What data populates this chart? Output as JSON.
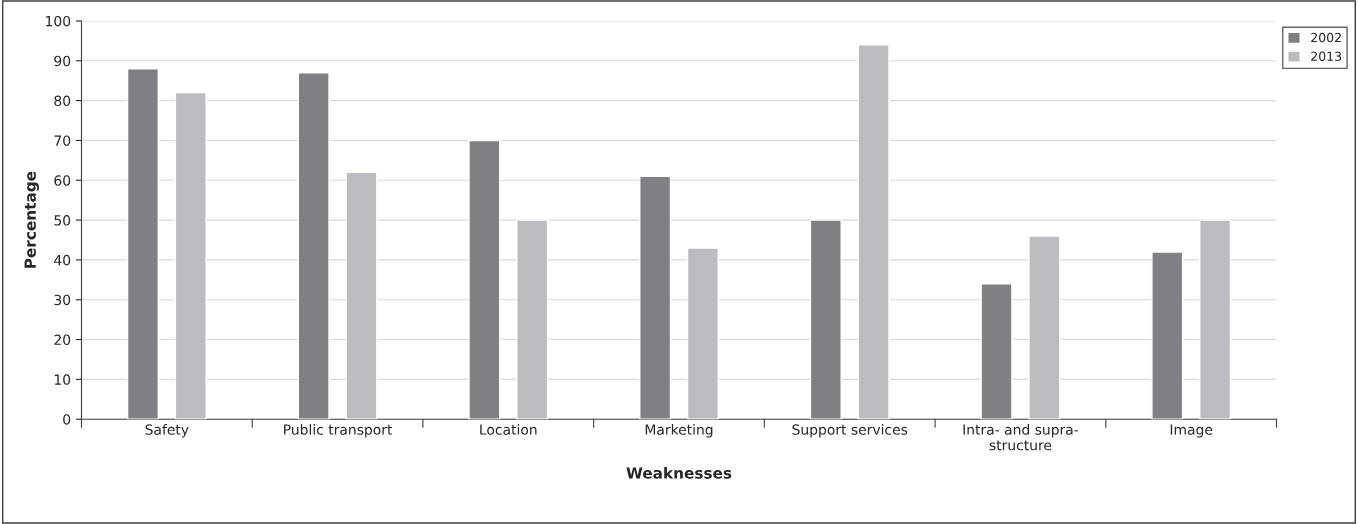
{
  "chart_data": {
    "type": "bar",
    "xlabel": "Weaknesses",
    "ylabel": "Percentage",
    "categories": [
      "Safety",
      "Public transport",
      "Location",
      "Marketing",
      "Support services",
      "Intra- and supra-\nstructure",
      "Image"
    ],
    "series": [
      {
        "name": "2002",
        "color": "#808083",
        "values": [
          88,
          87,
          70,
          61,
          50,
          34,
          42
        ]
      },
      {
        "name": "2013",
        "color": "#bcbcc0",
        "values": [
          82,
          62,
          50,
          43,
          94,
          46,
          50
        ]
      }
    ],
    "ylim": [
      0,
      100
    ],
    "yticks": [
      0,
      10,
      20,
      30,
      40,
      50,
      60,
      70,
      80,
      90,
      100
    ],
    "grid": "y",
    "legend": "top right"
  }
}
